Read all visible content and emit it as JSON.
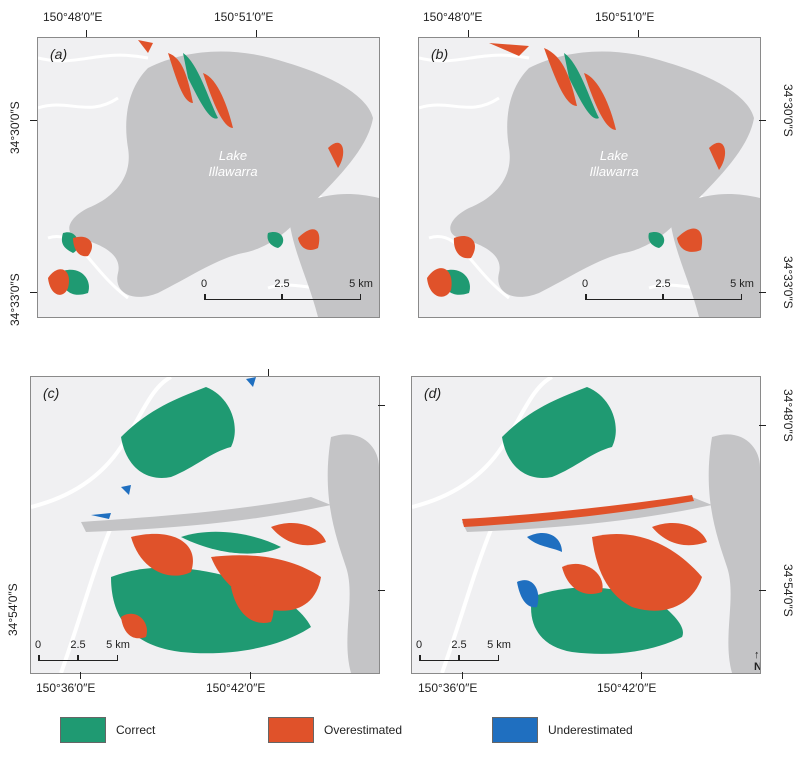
{
  "colors": {
    "correct": "#1f9a72",
    "overestimated": "#e0522a",
    "underestimated": "#1f6fc0",
    "water": "#c4c4c6",
    "land": "#f0f0f2",
    "road": "#ffffff"
  },
  "panels": [
    {
      "label": "(a)"
    },
    {
      "label": "(b)"
    },
    {
      "label": "(c)"
    },
    {
      "label": "(d)"
    }
  ],
  "lake_label": {
    "line1": "Lake",
    "line2": "Illawarra"
  },
  "coords": {
    "top_lon_1": "150°48′0″E",
    "top_lon_2": "150°51′0″E",
    "lat_30": "34°30′0″S",
    "lat_33": "34°33′0″S",
    "lat_48": "34°48′0″S",
    "lat_54": "34°54′0″S",
    "bottom_lon_1": "150°36′0″E",
    "bottom_lon_2": "150°42′0″E"
  },
  "scalebar_top": {
    "l0": "0",
    "l1": "2.5",
    "l2": "5 km"
  },
  "scalebar_bottom": {
    "l0": "0",
    "l1": "2.5",
    "l2": "5 km"
  },
  "north_label": "N",
  "legend": [
    {
      "label": "Correct",
      "color": "#1f9a72"
    },
    {
      "label": "Overestimated",
      "color": "#e0522a"
    },
    {
      "label": "Underestimated",
      "color": "#1f6fc0"
    }
  ]
}
